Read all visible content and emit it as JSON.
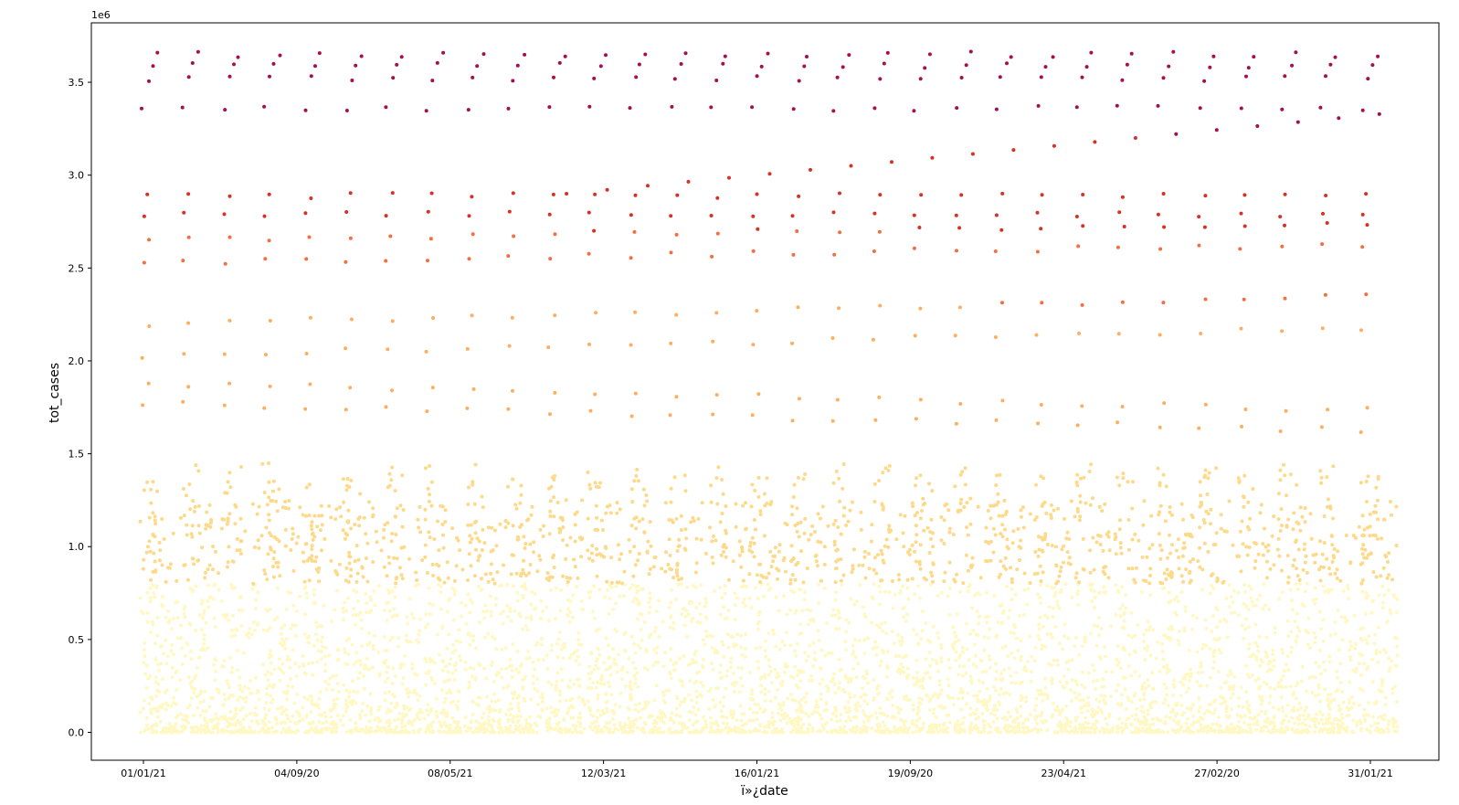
{
  "chart_data": {
    "type": "scatter",
    "title": "",
    "xlabel": "ï»¿date",
    "ylabel": "tot_cases",
    "y_offset_label": "1e6",
    "x_tick_labels": [
      "01/01/21",
      "04/09/20",
      "08/05/21",
      "12/03/21",
      "16/01/21",
      "19/09/20",
      "23/04/21",
      "27/02/20",
      "31/01/21"
    ],
    "y_tick_labels": [
      "0.0",
      "0.5",
      "1.0",
      "1.5",
      "2.0",
      "2.5",
      "3.0",
      "3.5"
    ],
    "ylim": [
      -0.15,
      3.82
    ],
    "y_scale_factor": 1000000,
    "n_date_groups": 31,
    "colormap": "YlOrRd",
    "colors": {
      "low": "#fff8c4",
      "mid_low": "#fdd98a",
      "mid": "#fdae61",
      "mid_high": "#f46d43",
      "high": "#d73027",
      "top": "#a50f4f"
    },
    "grid": false,
    "legend": "none",
    "series": [
      {
        "top_band_values": [
          3.36,
          3.52,
          3.59,
          3.65
        ],
        "band_2_9_values": [
          2.79,
          2.89
        ],
        "band_2_5_values": [
          2.53,
          2.65
        ],
        "band_2_2_values": [
          2.03,
          2.2
        ],
        "band_1_8_values": [
          1.77,
          1.88
        ],
        "band_1_3_values": [
          1.3,
          1.34
        ]
      }
    ]
  }
}
